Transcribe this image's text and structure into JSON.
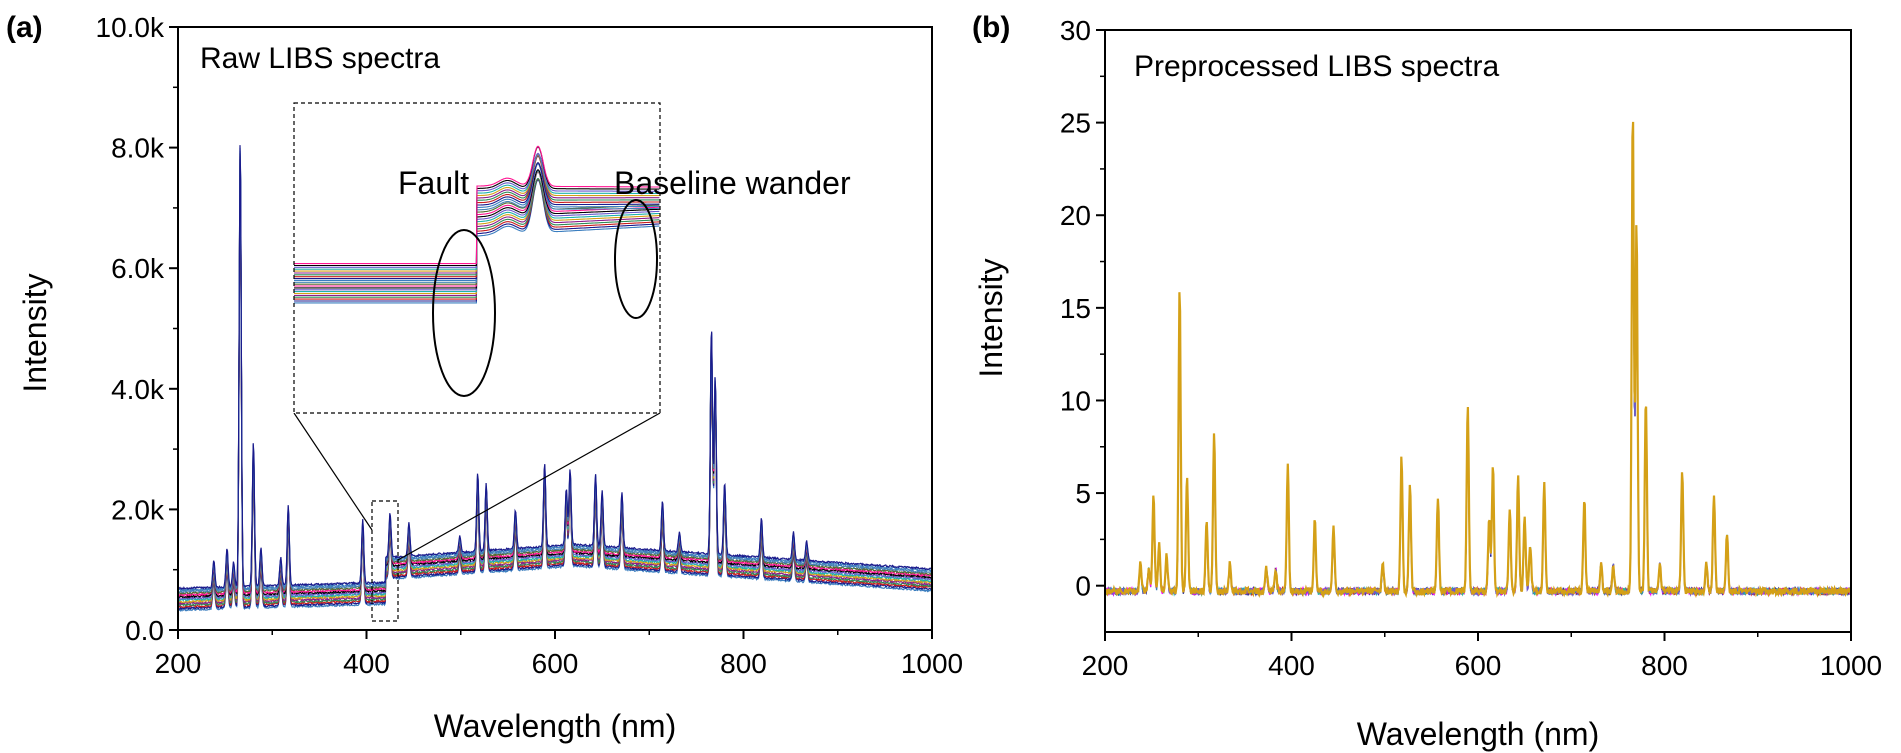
{
  "chart_data": [
    {
      "panel": "(a)",
      "type": "line",
      "title": "Raw LIBS spectra",
      "xlabel": "Wavelength (nm)",
      "ylabel": "Intensity",
      "xlim": [
        200,
        1000
      ],
      "ylim": [
        0,
        10000
      ],
      "xticks": [
        200,
        400,
        600,
        800,
        1000
      ],
      "xtick_labels": [
        "200",
        "400",
        "600",
        "800",
        "1000"
      ],
      "yticks": [
        0,
        2000,
        4000,
        6000,
        8000,
        10000
      ],
      "ytick_labels": [
        "0.0",
        "2.0k",
        "4.0k",
        "6.0k",
        "8.0k",
        "10.0k"
      ],
      "baseline": {
        "segment1": {
          "from": 200,
          "to": 420,
          "start": 520,
          "end": 620
        },
        "segment2": {
          "from": 420,
          "to": 1000,
          "start": 1030,
          "peak_at": 620,
          "peak": 1250,
          "end": 840
        },
        "fault_at": 420,
        "spread_low": -190,
        "spread_high": 170
      },
      "peaks": [
        {
          "x": 238,
          "h": 500
        },
        {
          "x": 252,
          "h": 700
        },
        {
          "x": 259,
          "h": 450
        },
        {
          "x": 266,
          "h": 8000
        },
        {
          "x": 280,
          "h": 2600
        },
        {
          "x": 288,
          "h": 700
        },
        {
          "x": 309,
          "h": 500
        },
        {
          "x": 317,
          "h": 1450
        },
        {
          "x": 396,
          "h": 1150
        },
        {
          "x": 425,
          "h": 800
        },
        {
          "x": 445,
          "h": 600
        },
        {
          "x": 499,
          "h": 300
        },
        {
          "x": 518,
          "h": 1400
        },
        {
          "x": 527,
          "h": 1200
        },
        {
          "x": 558,
          "h": 700
        },
        {
          "x": 589,
          "h": 1500
        },
        {
          "x": 612,
          "h": 1000
        },
        {
          "x": 616,
          "h": 1350
        },
        {
          "x": 643,
          "h": 1300
        },
        {
          "x": 650,
          "h": 1000
        },
        {
          "x": 671,
          "h": 1000
        },
        {
          "x": 714,
          "h": 900
        },
        {
          "x": 732,
          "h": 350
        },
        {
          "x": 766,
          "h": 4100
        },
        {
          "x": 770,
          "h": 3200
        },
        {
          "x": 780,
          "h": 1300
        },
        {
          "x": 819,
          "h": 700
        },
        {
          "x": 853,
          "h": 500
        },
        {
          "x": 867,
          "h": 350
        }
      ],
      "inset": {
        "region": [
          405,
          435
        ],
        "annotations": [
          "Fault",
          "Baseline wander"
        ]
      },
      "series_colors": [
        "#3b7ebf",
        "#1a1a8c",
        "#c81e1e",
        "#2e8b57",
        "#8b1e8b",
        "#d4a017",
        "#20b2aa",
        "#6a5acd",
        "#000000",
        "#ff1493",
        "#556b2f",
        "#4682b4"
      ]
    },
    {
      "panel": "(b)",
      "type": "line",
      "title": "Preprocessed LIBS spectra",
      "xlabel": "Wavelength (nm)",
      "ylabel": "Intensity",
      "xlim": [
        200,
        1000
      ],
      "ylim": [
        -2.5,
        30
      ],
      "xticks": [
        200,
        400,
        600,
        800,
        1000
      ],
      "xtick_labels": [
        "200",
        "400",
        "600",
        "800",
        "1000"
      ],
      "yticks": [
        0,
        5,
        10,
        15,
        20,
        25,
        30
      ],
      "ytick_labels": [
        "0",
        "5",
        "10",
        "15",
        "20",
        "25",
        "30"
      ],
      "baseline_level": -0.3,
      "peaks": [
        {
          "x": 238,
          "h": 1.5
        },
        {
          "x": 247,
          "h": 1.2
        },
        {
          "x": 252,
          "h": 5.2
        },
        {
          "x": 258,
          "h": 2.5
        },
        {
          "x": 266,
          "h": 2.0
        },
        {
          "x": 280,
          "h": 16.5
        },
        {
          "x": 288,
          "h": 6.3
        },
        {
          "x": 309,
          "h": 3.8
        },
        {
          "x": 317,
          "h": 8.5
        },
        {
          "x": 334,
          "h": 1.5
        },
        {
          "x": 373,
          "h": 1.2
        },
        {
          "x": 383,
          "h": 1.2
        },
        {
          "x": 396,
          "h": 6.8
        },
        {
          "x": 425,
          "h": 3.8
        },
        {
          "x": 445,
          "h": 3.5
        },
        {
          "x": 498,
          "h": 1.5
        },
        {
          "x": 518,
          "h": 7.2
        },
        {
          "x": 527,
          "h": 5.8
        },
        {
          "x": 557,
          "h": 5.0
        },
        {
          "x": 589,
          "h": 10.2
        },
        {
          "x": 612,
          "h": 4.0
        },
        {
          "x": 616,
          "h": 6.8
        },
        {
          "x": 634,
          "h": 4.5
        },
        {
          "x": 643,
          "h": 6.2
        },
        {
          "x": 650,
          "h": 4.0
        },
        {
          "x": 656,
          "h": 2.5
        },
        {
          "x": 671,
          "h": 5.8
        },
        {
          "x": 714,
          "h": 5.0
        },
        {
          "x": 732,
          "h": 1.5
        },
        {
          "x": 745,
          "h": 1.5
        },
        {
          "x": 766,
          "h": 26.0
        },
        {
          "x": 770,
          "h": 20.0
        },
        {
          "x": 780,
          "h": 10.5
        },
        {
          "x": 795,
          "h": 1.5
        },
        {
          "x": 819,
          "h": 6.5
        },
        {
          "x": 845,
          "h": 1.5
        },
        {
          "x": 853,
          "h": 5.3
        },
        {
          "x": 867,
          "h": 3.2
        }
      ],
      "series_colors": [
        "#3b7ebf",
        "#1a1a8c",
        "#c81e1e",
        "#ff00ff",
        "#20b2aa",
        "#6a5acd",
        "#d4a017"
      ]
    }
  ]
}
